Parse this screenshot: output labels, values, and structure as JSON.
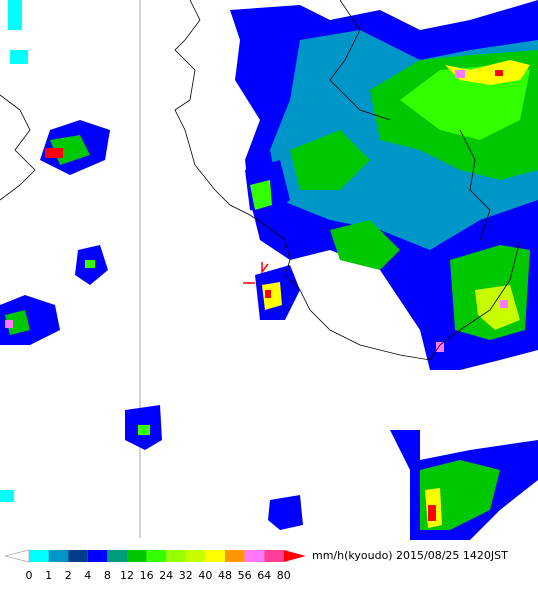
{
  "legend": {
    "levels": [
      0,
      1,
      2,
      4,
      8,
      12,
      16,
      24,
      32,
      40,
      48,
      56,
      64,
      80
    ],
    "colors": [
      "#00ffff",
      "#0096c8",
      "#003c8c",
      "#0000ff",
      "#009b78",
      "#00c800",
      "#32ff00",
      "#96ff00",
      "#c8ff00",
      "#ffff00",
      "#ff9600",
      "#ff78ff",
      "#ff3c96"
    ],
    "below_color": "#ffffff",
    "above_color": "#ff0000",
    "unit": "mm/h(kyoudo)",
    "timestamp": "2015/08/25 1420JST"
  }
}
